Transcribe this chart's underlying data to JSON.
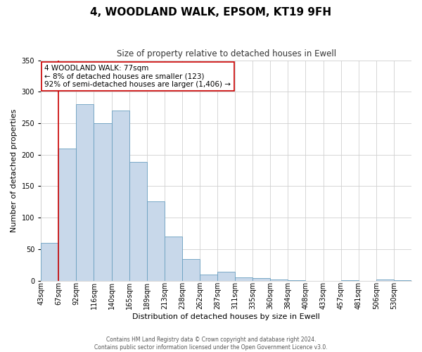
{
  "title": "4, WOODLAND WALK, EPSOM, KT19 9FH",
  "subtitle": "Size of property relative to detached houses in Ewell",
  "xlabel": "Distribution of detached houses by size in Ewell",
  "ylabel": "Number of detached properties",
  "bin_labels": [
    "43sqm",
    "67sqm",
    "92sqm",
    "116sqm",
    "140sqm",
    "165sqm",
    "189sqm",
    "213sqm",
    "238sqm",
    "262sqm",
    "287sqm",
    "311sqm",
    "335sqm",
    "360sqm",
    "384sqm",
    "408sqm",
    "433sqm",
    "457sqm",
    "481sqm",
    "506sqm",
    "530sqm"
  ],
  "bar_heights": [
    60,
    210,
    280,
    250,
    270,
    188,
    126,
    70,
    34,
    10,
    14,
    5,
    4,
    2,
    1,
    0,
    0,
    1,
    0,
    2,
    1
  ],
  "bar_color": "#c8d8ea",
  "bar_edge_color": "#6a9fc0",
  "vline_x": 1,
  "vline_color": "#cc0000",
  "ylim": [
    0,
    350
  ],
  "yticks": [
    0,
    50,
    100,
    150,
    200,
    250,
    300,
    350
  ],
  "annotation_text": "4 WOODLAND WALK: 77sqm\n← 8% of detached houses are smaller (123)\n92% of semi-detached houses are larger (1,406) →",
  "annotation_box_color": "#ffffff",
  "annotation_box_edge": "#cc0000",
  "footer_line1": "Contains HM Land Registry data © Crown copyright and database right 2024.",
  "footer_line2": "Contains public sector information licensed under the Open Government Licence v3.0.",
  "background_color": "#ffffff",
  "grid_color": "#d0d0d0",
  "title_fontsize": 11,
  "subtitle_fontsize": 8.5,
  "xlabel_fontsize": 8,
  "ylabel_fontsize": 8,
  "tick_fontsize": 7,
  "footer_fontsize": 5.5,
  "annotation_fontsize": 7.5
}
